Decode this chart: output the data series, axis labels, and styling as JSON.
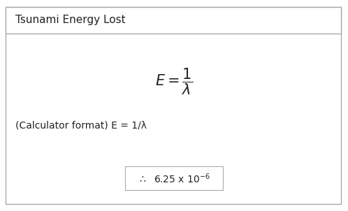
{
  "title": "Tsunami Energy Lost",
  "formula_latex": "$E = \\dfrac{1}{\\lambda}$",
  "calculator_text": "(Calculator format) E = 1/λ",
  "result_text_main": "∷  6.25 x 10",
  "result_exponent": "-6",
  "bg_color": "#ffffff",
  "border_color": "#aaaaaa",
  "title_fontsize": 11,
  "formula_fontsize": 15,
  "calc_fontsize": 10,
  "result_fontsize": 10,
  "fig_width": 4.98,
  "fig_height": 3.02,
  "dpi": 100
}
